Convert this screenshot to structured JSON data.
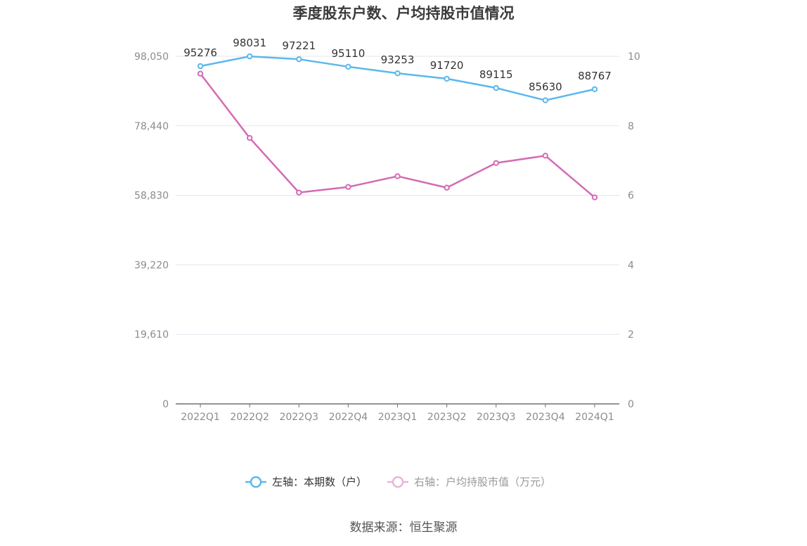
{
  "chart_data": {
    "type": "line",
    "title": "季度股东户数、户均持股市值情况",
    "categories": [
      "2022Q1",
      "2022Q2",
      "2022Q3",
      "2022Q4",
      "2023Q1",
      "2023Q2",
      "2023Q3",
      "2023Q4",
      "2024Q1"
    ],
    "left_axis": {
      "ticks": [
        "0",
        "19,610",
        "39,220",
        "58,830",
        "78,440",
        "98,050"
      ],
      "tick_values": [
        0,
        19610,
        39220,
        58830,
        78440,
        98050
      ],
      "range": [
        0,
        98050
      ]
    },
    "right_axis": {
      "ticks": [
        "0",
        "2",
        "4",
        "6",
        "8",
        "10"
      ],
      "tick_values": [
        0,
        2,
        4,
        6,
        8,
        10
      ],
      "range": [
        0,
        10
      ]
    },
    "series": [
      {
        "name": "左轴：本期数（户）",
        "axis": "left",
        "color": "#5bb8ec",
        "values": [
          95276,
          98031,
          97221,
          95110,
          93253,
          91720,
          89115,
          85630,
          88767
        ],
        "labels": [
          "95276",
          "98031",
          "97221",
          "95110",
          "93253",
          "91720",
          "89115",
          "85630",
          "88767"
        ]
      },
      {
        "name": "右轴：户均持股市值（万元）",
        "axis": "right",
        "color": "#d46bb4",
        "legend_color": "#e8b5d9",
        "values": [
          9.5,
          7.65,
          6.08,
          6.24,
          6.55,
          6.22,
          6.93,
          7.14,
          5.94
        ]
      }
    ],
    "grid": true,
    "legend_position": "bottom"
  },
  "source": "数据来源：恒生聚源"
}
